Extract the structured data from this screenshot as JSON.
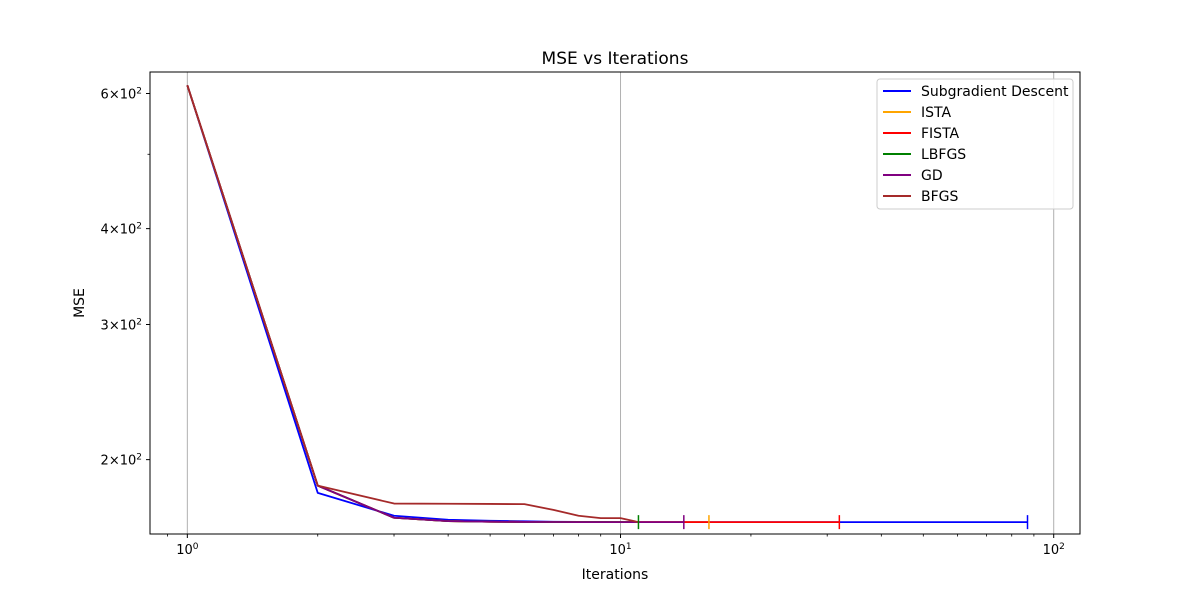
{
  "chart_data": {
    "type": "line",
    "title": "MSE vs Iterations",
    "xlabel": "Iterations",
    "ylabel": "MSE",
    "xscale": "log",
    "yscale": "log",
    "xlim": [
      0.82,
      115
    ],
    "ylim": [
      160,
      640
    ],
    "grid": "x-major",
    "legend_position": "top-right",
    "x_ticks": [
      {
        "value": 1,
        "base": "10",
        "exp": "0"
      },
      {
        "value": 10,
        "base": "10",
        "exp": "1"
      },
      {
        "value": 100,
        "base": "10",
        "exp": "2"
      }
    ],
    "y_ticks": [
      {
        "value": 200,
        "mantissa": "2",
        "base": "10",
        "exp": "2"
      },
      {
        "value": 300,
        "mantissa": "3",
        "base": "10",
        "exp": "2"
      },
      {
        "value": 400,
        "mantissa": "4",
        "base": "10",
        "exp": "2"
      },
      {
        "value": 600,
        "mantissa": "6",
        "base": "10",
        "exp": "2"
      }
    ],
    "series": [
      {
        "name": "Subgradient Descent",
        "color": "#0000ff",
        "x": [
          1,
          2,
          3,
          4,
          5,
          6,
          7,
          8,
          9,
          10,
          20,
          30,
          40,
          50,
          60,
          70,
          80,
          87
        ],
        "y": [
          615,
          181,
          169,
          167,
          166.5,
          166.2,
          166,
          165.9,
          165.9,
          165.8,
          165.8,
          165.8,
          165.8,
          165.8,
          165.8,
          165.8,
          165.8,
          165.8
        ]
      },
      {
        "name": "ISTA",
        "color": "#ffa500",
        "x": [
          1,
          2,
          3,
          4,
          5,
          6,
          7,
          8,
          9,
          10,
          11,
          12,
          13,
          14,
          15,
          16
        ],
        "y": [
          615,
          185,
          168,
          166.3,
          166,
          165.9,
          165.85,
          165.8,
          165.8,
          165.8,
          165.8,
          165.8,
          165.8,
          165.8,
          165.8,
          165.8
        ]
      },
      {
        "name": "FISTA",
        "color": "#ff0000",
        "x": [
          1,
          2,
          3,
          4,
          5,
          6,
          7,
          8,
          9,
          10,
          15,
          20,
          25,
          32
        ],
        "y": [
          615,
          185,
          168,
          166.3,
          166,
          165.9,
          165.85,
          165.8,
          165.8,
          165.8,
          165.8,
          165.8,
          165.8,
          165.8
        ]
      },
      {
        "name": "LBFGS",
        "color": "#008000",
        "x": [
          1,
          2,
          3,
          4,
          5,
          6,
          7,
          8,
          9,
          10,
          11
        ],
        "y": [
          615,
          185,
          168,
          166.3,
          166,
          165.9,
          165.85,
          165.8,
          165.8,
          165.8,
          165.8
        ]
      },
      {
        "name": "GD",
        "color": "#800080",
        "x": [
          1,
          2,
          3,
          4,
          5,
          6,
          7,
          8,
          9,
          10,
          11,
          12,
          13,
          14
        ],
        "y": [
          615,
          185,
          168,
          166.3,
          166,
          165.9,
          165.85,
          165.8,
          165.8,
          165.8,
          165.8,
          165.8,
          165.8,
          165.8
        ]
      },
      {
        "name": "BFGS",
        "color": "#a52a2a",
        "x": [
          1,
          2,
          3,
          4,
          5,
          6,
          7,
          8,
          9,
          10,
          11
        ],
        "y": [
          615,
          185,
          175.3,
          175.2,
          175.1,
          175,
          172,
          169,
          167.8,
          167.8,
          165.8
        ]
      }
    ],
    "end_markers": [
      {
        "series": "LBFGS",
        "x": 11,
        "y": 165.8
      },
      {
        "series": "GD",
        "x": 14,
        "y": 165.8
      },
      {
        "series": "ISTA",
        "x": 16,
        "y": 165.8
      },
      {
        "series": "FISTA",
        "x": 32,
        "y": 165.8
      },
      {
        "series": "Subgradient Descent",
        "x": 87,
        "y": 165.8
      }
    ]
  }
}
